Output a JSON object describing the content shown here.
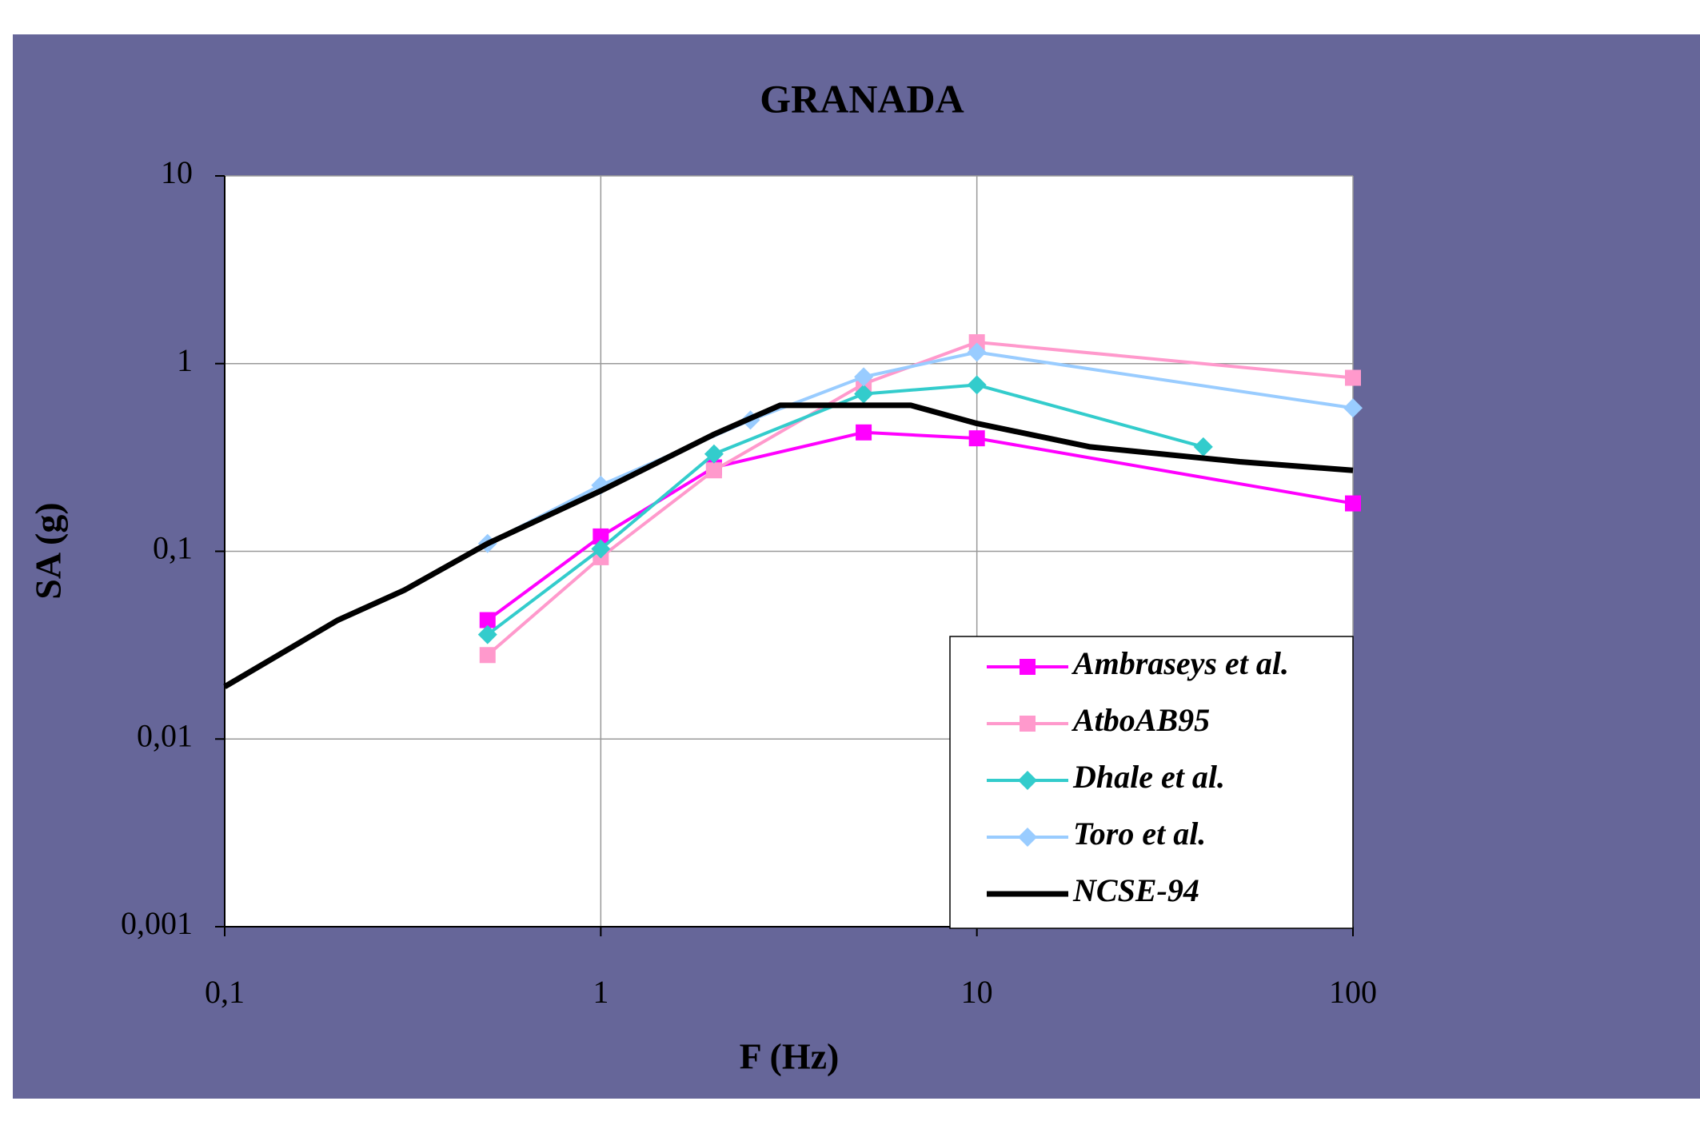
{
  "chart_data": {
    "type": "line",
    "title": "GRANADA",
    "x_label": "F (Hz)",
    "y_label": "SA (g)",
    "log_x": true,
    "log_y": true,
    "grid": true,
    "legend": "lower right",
    "xlim": [
      0.1,
      100
    ],
    "xticks": [
      {
        "value": 0.1,
        "label": "0,1"
      },
      1,
      10,
      100
    ],
    "ylim": [
      0.001,
      10
    ],
    "yticks": [
      {
        "value": 0.001,
        "label": "0,001"
      },
      {
        "value": 0.01,
        "label": "0,01"
      },
      {
        "value": 0.1,
        "label": "0,1"
      },
      1,
      10
    ],
    "series": [
      {
        "name": "Ambraseys et al.",
        "color": "#ff00ff",
        "marker": "square",
        "x": [
          0.5,
          1,
          2,
          5,
          10,
          100
        ],
        "values": [
          0.043,
          0.12,
          0.28,
          0.43,
          0.4,
          0.18
        ]
      },
      {
        "name": "AtboAB95",
        "color": "#ff99cc",
        "marker": "square",
        "x": [
          0.5,
          1,
          2,
          5,
          10,
          100
        ],
        "values": [
          0.028,
          0.093,
          0.27,
          0.78,
          1.3,
          0.84
        ]
      },
      {
        "name": "Dhale et al.",
        "color": "#33cccc",
        "marker": "diamond",
        "x": [
          0.5,
          1,
          2,
          5,
          10,
          40
        ],
        "values": [
          0.036,
          0.103,
          0.33,
          0.69,
          0.77,
          0.36
        ]
      },
      {
        "name": "Toro et al.",
        "color": "#99ccff",
        "marker": "diamond",
        "x": [
          0.5,
          1,
          2.5,
          5,
          10,
          100
        ],
        "values": [
          0.11,
          0.225,
          0.5,
          0.85,
          1.15,
          0.58
        ]
      },
      {
        "name": "NCSE-94",
        "color": "#000000",
        "marker": "none",
        "x": [
          0.1,
          0.2,
          0.3,
          0.5,
          1,
          2,
          3,
          5,
          6.67,
          10,
          20,
          50,
          100
        ],
        "values": [
          0.019,
          0.043,
          0.062,
          0.11,
          0.21,
          0.42,
          0.6,
          0.6,
          0.6,
          0.48,
          0.36,
          0.3,
          0.27
        ]
      }
    ]
  }
}
